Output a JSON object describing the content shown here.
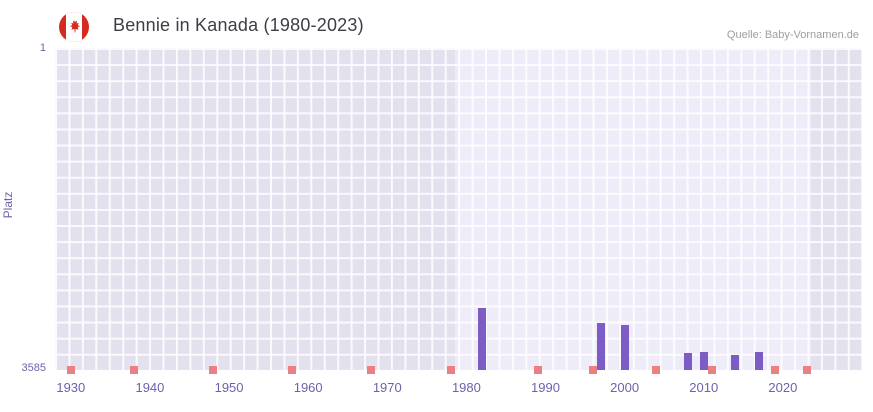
{
  "header": {
    "title": "Bennie in Kanada (1980-2023)",
    "source": "Quelle: Baby-Vornamen.de",
    "flag_icon": "canada-flag"
  },
  "chart_data": {
    "type": "bar",
    "title": "Bennie in Kanada (1980-2023)",
    "xlabel": "",
    "ylabel": "Platz",
    "y_axis": {
      "min": 1,
      "max": 3585,
      "inverted": true,
      "top_tick": "1",
      "bottom_tick": "3585"
    },
    "x_range": [
      1928,
      2030
    ],
    "x_ticks": [
      "1930",
      "1940",
      "1950",
      "1960",
      "1970",
      "1980",
      "1990",
      "2000",
      "2010",
      "2020"
    ],
    "highlight_range": [
      1978.5,
      2023.5
    ],
    "grid": true,
    "legend": "none",
    "bars": [
      {
        "year": 1982,
        "rank": 2900
      },
      {
        "year": 1997,
        "rank": 3060
      },
      {
        "year": 2000,
        "rank": 3080
      },
      {
        "year": 2008,
        "rank": 3400
      },
      {
        "year": 2010,
        "rank": 3390
      },
      {
        "year": 2014,
        "rank": 3420
      },
      {
        "year": 2017,
        "rank": 3380
      }
    ],
    "unranked_years": [
      1930,
      1938,
      1948,
      1958,
      1968,
      1978,
      1989,
      1996,
      2004,
      2011,
      2019,
      2023
    ],
    "colors": {
      "bar": "#7d5cc6",
      "unranked_marker": "#ec8080",
      "plot_bg": "#e4e1ef",
      "plot_bg_highlight": "#eeecf8",
      "grid_line": "#ffffff",
      "axis_label": "#6f61ab",
      "title": "#3d3d47",
      "source": "#9e9e9e",
      "flag_red": "#d52b1e"
    }
  }
}
